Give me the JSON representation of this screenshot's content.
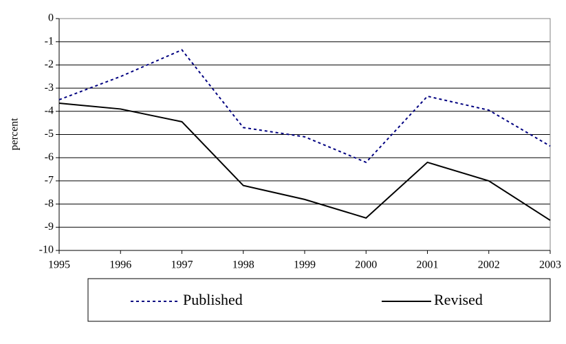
{
  "chart_data": {
    "type": "line",
    "y_label": "percent",
    "x": [
      1995,
      1996,
      1997,
      1998,
      1999,
      2000,
      2001,
      2002,
      2003
    ],
    "xlim": [
      1995,
      2003
    ],
    "xticks": [
      1995,
      1996,
      1997,
      1998,
      1999,
      2000,
      2001,
      2002,
      2003
    ],
    "ylim": [
      -10,
      0
    ],
    "yticks": [
      -10,
      -9,
      -8,
      -7,
      -6,
      -5,
      -4,
      -3,
      -2,
      -1,
      0
    ],
    "grid": true,
    "legend": "bottom",
    "series": [
      {
        "name": "Published",
        "color": "#000080",
        "dash": true,
        "values": [
          -3.5,
          -2.5,
          -1.35,
          -4.7,
          -5.1,
          -6.2,
          -3.35,
          -3.95,
          -5.5
        ]
      },
      {
        "name": "Revised",
        "color": "#000000",
        "dash": false,
        "values": [
          -3.65,
          -3.9,
          -4.45,
          -7.2,
          -7.8,
          -8.6,
          -6.2,
          -7.0,
          -8.7
        ]
      }
    ]
  }
}
